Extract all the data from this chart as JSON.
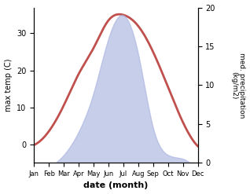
{
  "months": [
    "Jan",
    "Feb",
    "Mar",
    "Apr",
    "May",
    "Jun",
    "Jul",
    "Aug",
    "Sep",
    "Oct",
    "Nov",
    "Dec"
  ],
  "month_positions": [
    1,
    2,
    3,
    4,
    5,
    6,
    7,
    8,
    9,
    10,
    11,
    12
  ],
  "temperature": [
    -0.2,
    3.5,
    10.5,
    19.0,
    26.0,
    33.5,
    35.0,
    32.0,
    25.0,
    15.5,
    6.0,
    -0.5
  ],
  "precipitation": [
    -0.8,
    -0.5,
    1.0,
    4.0,
    9.0,
    16.0,
    19.0,
    14.0,
    4.5,
    1.0,
    0.5,
    -1.5
  ],
  "temp_color": "#c0504d",
  "precip_fill_color": "#aab4e0",
  "precip_alpha": 0.65,
  "ylabel_left": "max temp (C)",
  "ylabel_right": "med. precipitation\n(kg/m2)",
  "xlabel": "date (month)",
  "ylim_left": [
    -5,
    37
  ],
  "ylim_right": [
    0,
    20
  ],
  "yticks_left": [
    0,
    10,
    20,
    30
  ],
  "yticks_right": [
    0,
    5,
    10,
    15,
    20
  ],
  "title": ""
}
